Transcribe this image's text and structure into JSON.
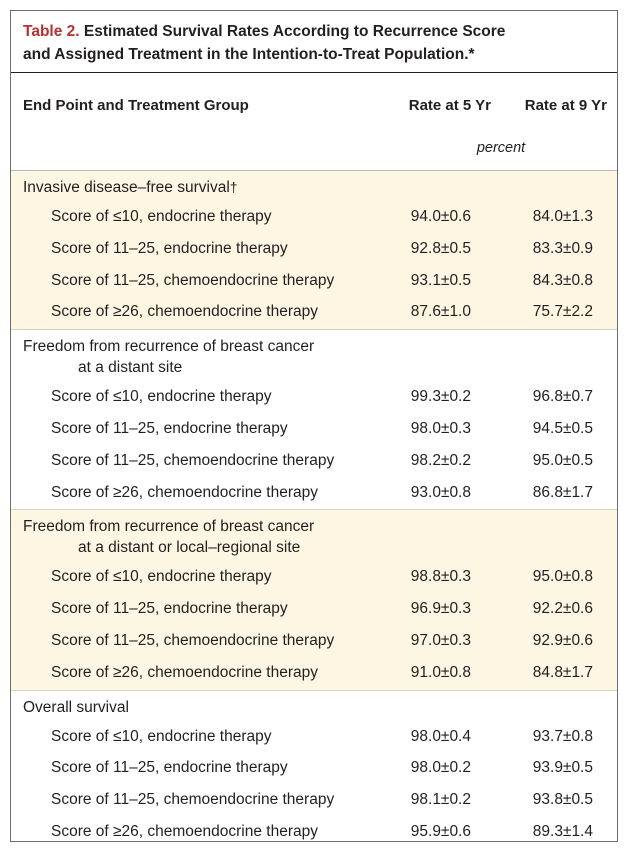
{
  "table": {
    "label": "Table 2.",
    "title_line1": "Estimated Survival Rates According to Recurrence Score",
    "title_line2": "and Assigned Treatment in the Intention-to-Treat Population.*",
    "col_endpoint": "End Point and Treatment Group",
    "col_5yr": "Rate at 5 Yr",
    "col_9yr": "Rate at 9 Yr",
    "unit": "percent",
    "sections": [
      {
        "line1": "Invasive disease–free survival",
        "line2": "",
        "mark": "†",
        "rows": [
          {
            "group": "Score of ≤10, endocrine therapy",
            "rate5": "94.0±0.6",
            "rate9": "84.0±1.3"
          },
          {
            "group": "Score of 11–25, endocrine therapy",
            "rate5": "92.8±0.5",
            "rate9": "83.3±0.9"
          },
          {
            "group": "Score of 11–25, chemoendocrine therapy",
            "rate5": "93.1±0.5",
            "rate9": "84.3±0.8"
          },
          {
            "group": "Score of ≥26, chemoendocrine therapy",
            "rate5": "87.6±1.0",
            "rate9": "75.7±2.2"
          }
        ]
      },
      {
        "line1": "Freedom from recurrence of breast cancer",
        "line2": "at a distant site",
        "mark": "",
        "rows": [
          {
            "group": "Score of ≤10, endocrine therapy",
            "rate5": "99.3±0.2",
            "rate9": "96.8±0.7"
          },
          {
            "group": "Score of 11–25, endocrine therapy",
            "rate5": "98.0±0.3",
            "rate9": "94.5±0.5"
          },
          {
            "group": "Score of 11–25, chemoendocrine therapy",
            "rate5": "98.2±0.2",
            "rate9": "95.0±0.5"
          },
          {
            "group": "Score of ≥26, chemoendocrine therapy",
            "rate5": "93.0±0.8",
            "rate9": "86.8±1.7"
          }
        ]
      },
      {
        "line1": "Freedom from recurrence of breast cancer",
        "line2": "at a distant or local–regional site",
        "mark": "",
        "rows": [
          {
            "group": "Score of ≤10, endocrine therapy",
            "rate5": "98.8±0.3",
            "rate9": "95.0±0.8"
          },
          {
            "group": "Score of 11–25, endocrine therapy",
            "rate5": "96.9±0.3",
            "rate9": "92.2±0.6"
          },
          {
            "group": "Score of 11–25, chemoendocrine therapy",
            "rate5": "97.0±0.3",
            "rate9": "92.9±0.6"
          },
          {
            "group": "Score of ≥26, chemoendocrine therapy",
            "rate5": "91.0±0.8",
            "rate9": "84.8±1.7"
          }
        ]
      },
      {
        "line1": "Overall survival",
        "line2": "",
        "mark": "",
        "rows": [
          {
            "group": "Score of ≤10, endocrine therapy",
            "rate5": "98.0±0.4",
            "rate9": "93.7±0.8"
          },
          {
            "group": "Score of 11–25, endocrine therapy",
            "rate5": "98.0±0.2",
            "rate9": "93.9±0.5"
          },
          {
            "group": "Score of 11–25, chemoendocrine therapy",
            "rate5": "98.1±0.2",
            "rate9": "93.8±0.5"
          },
          {
            "group": "Score of ≥26, chemoendocrine therapy",
            "rate5": "95.9±0.6",
            "rate9": "89.3±1.4"
          }
        ]
      }
    ]
  }
}
